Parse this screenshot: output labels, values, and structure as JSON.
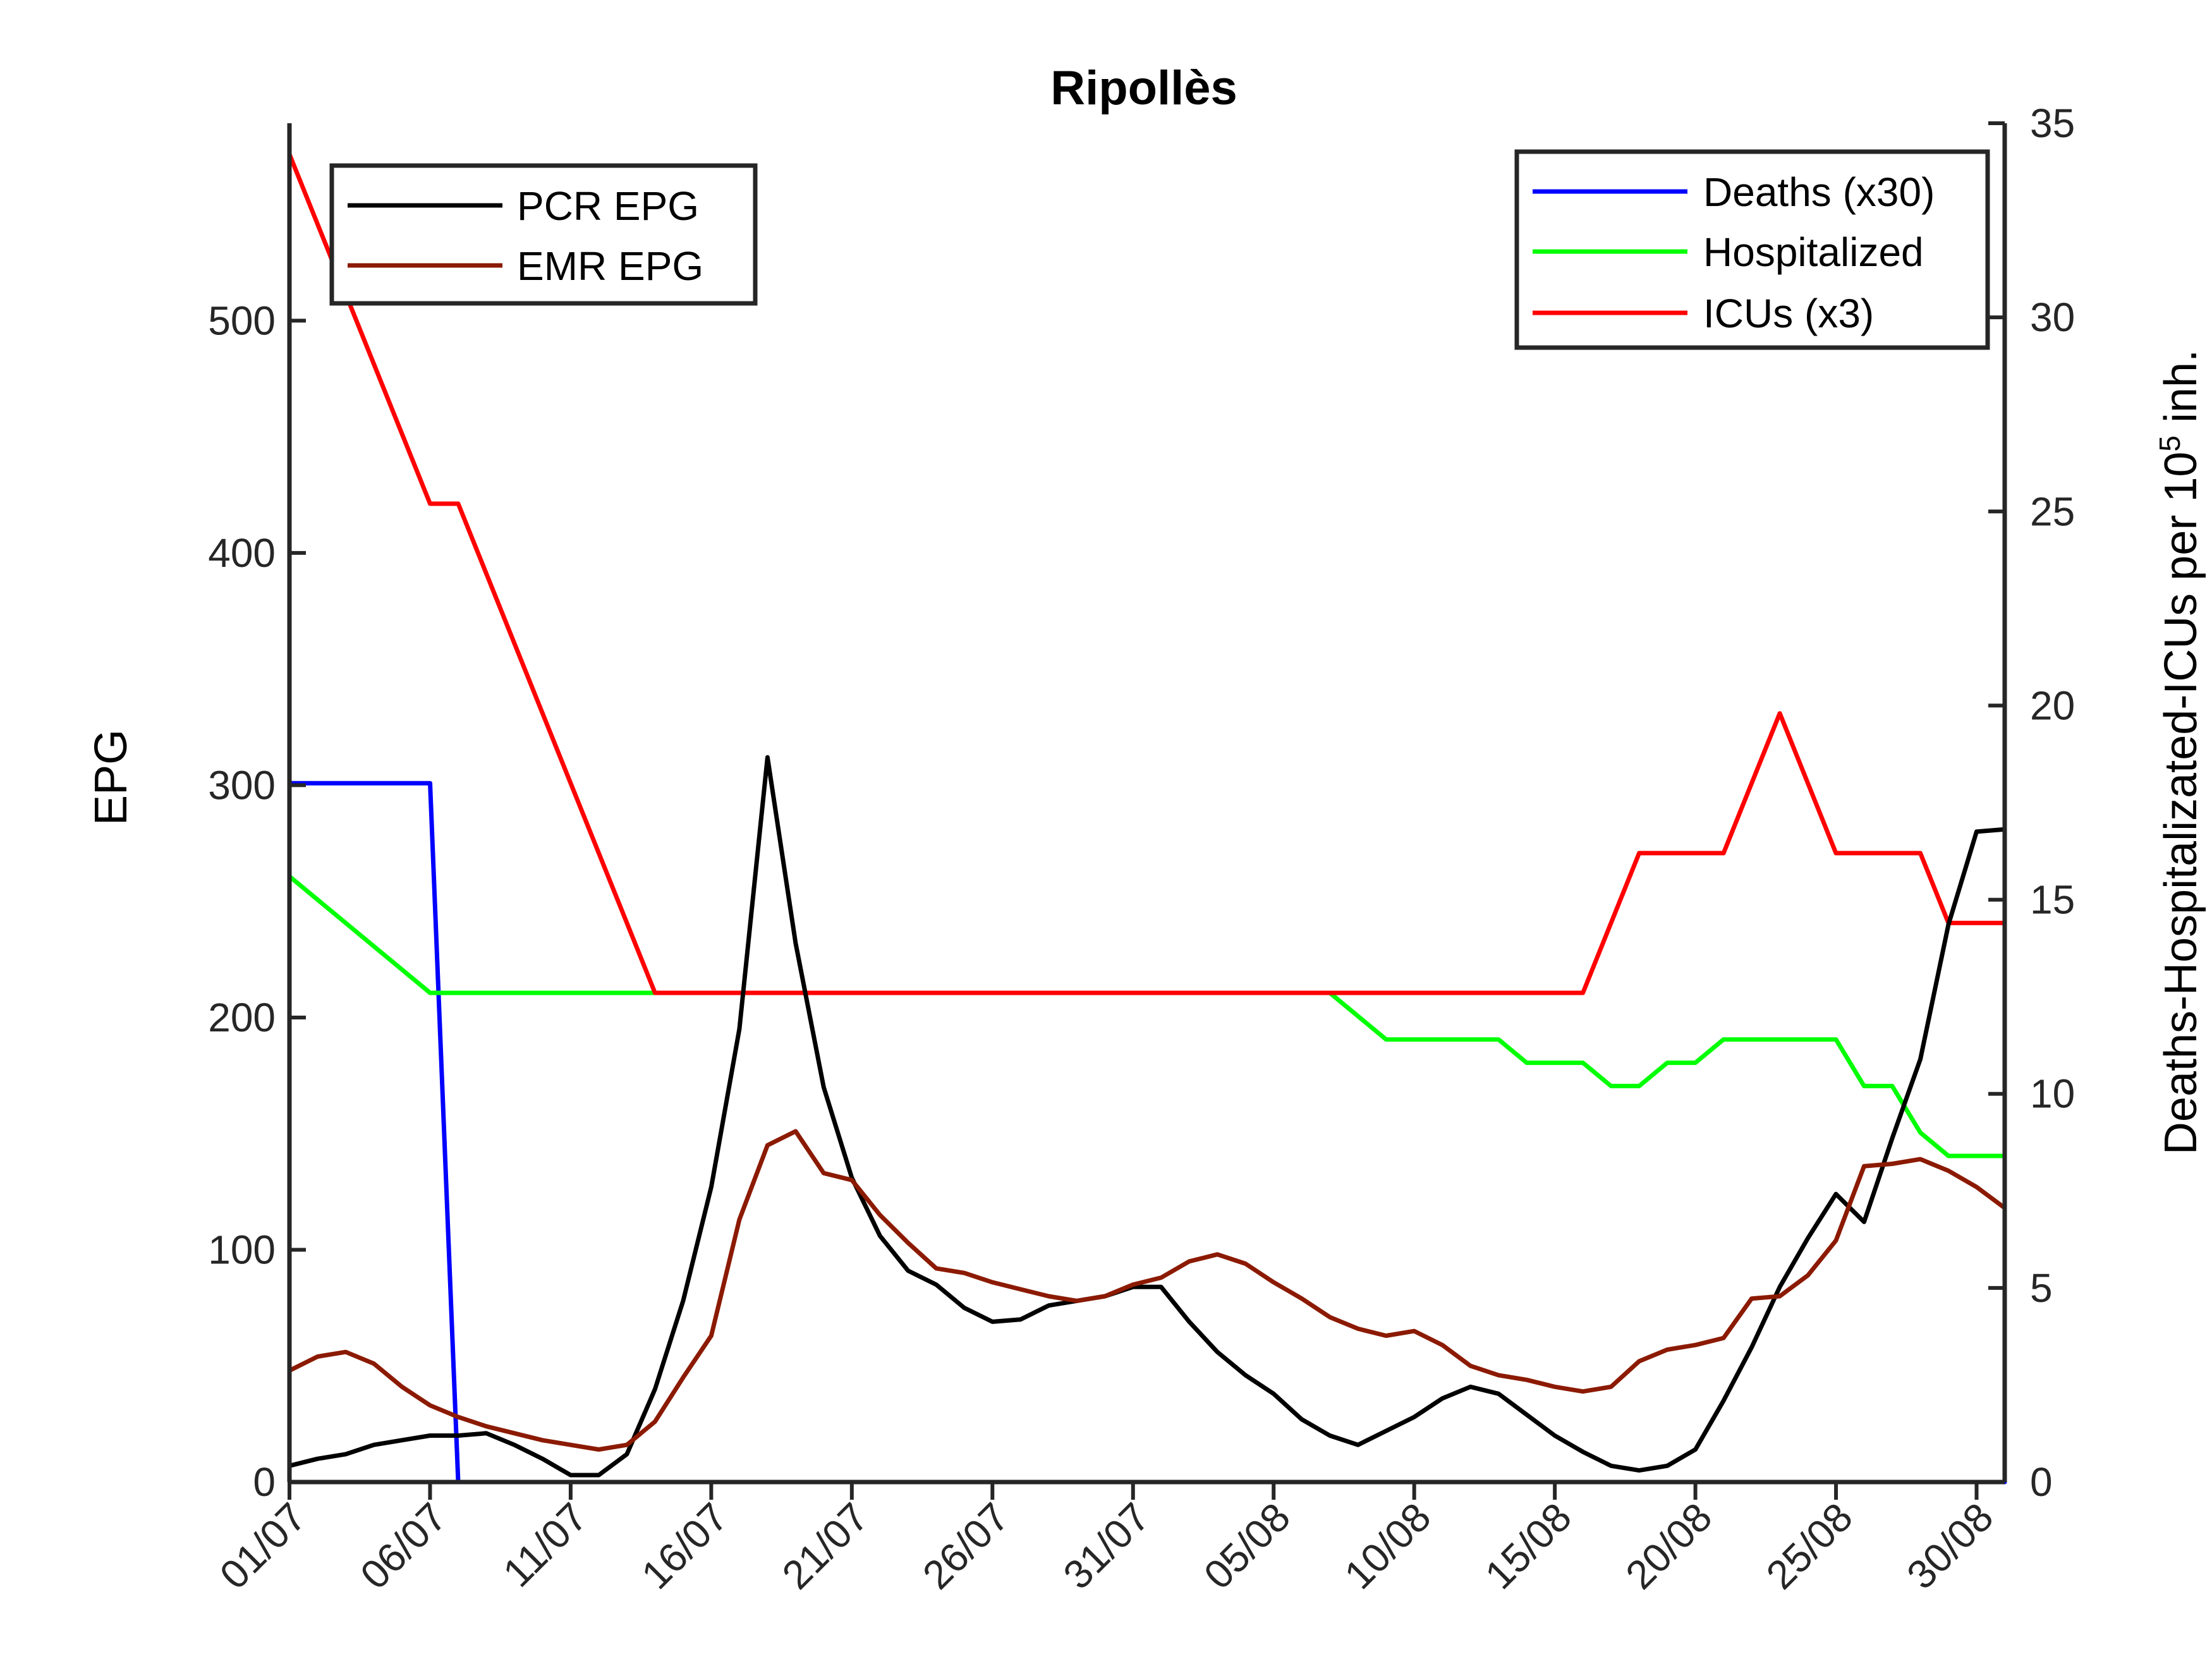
{
  "chart_data": {
    "type": "line",
    "title": "Ripollès",
    "ylabel_left": "EPG",
    "ylabel_right_pre": "Deaths-Hospitalizated-ICUs per 10",
    "ylabel_right_sup": "5",
    "ylabel_right_post": " inh.",
    "x_ticks": [
      "01/07",
      "06/07",
      "11/07",
      "16/07",
      "21/07",
      "26/07",
      "31/07",
      "05/08",
      "10/08",
      "15/08",
      "20/08",
      "25/08",
      "30/08"
    ],
    "x_tick_days": [
      0,
      5,
      10,
      15,
      20,
      25,
      30,
      35,
      40,
      45,
      50,
      55,
      60
    ],
    "xlim": [
      0,
      61
    ],
    "ylim_left": [
      0,
      585
    ],
    "yticks_left": [
      0,
      100,
      200,
      300,
      400,
      500
    ],
    "ylim_right": [
      0,
      35
    ],
    "yticks_right": [
      0,
      5,
      10,
      15,
      20,
      25,
      30,
      35
    ],
    "left_series": [
      {
        "name": "PCR EPG",
        "color": "#000000",
        "x": [
          0,
          1,
          2,
          3,
          4,
          5,
          6,
          7,
          8,
          9,
          10,
          11,
          12,
          13,
          14,
          15,
          16,
          17,
          18,
          19,
          20,
          21,
          22,
          23,
          24,
          25,
          26,
          27,
          28,
          29,
          30,
          31,
          32,
          33,
          34,
          35,
          36,
          37,
          38,
          39,
          40,
          41,
          42,
          43,
          44,
          45,
          46,
          47,
          48,
          49,
          50,
          51,
          52,
          53,
          54,
          55,
          56,
          57,
          58,
          59,
          60,
          61
        ],
        "values": [
          7,
          10,
          12,
          16,
          18,
          20,
          20,
          21,
          16,
          10,
          3,
          3,
          12,
          40,
          78,
          127,
          195,
          312,
          232,
          170,
          131,
          106,
          91,
          85,
          75,
          69,
          70,
          76,
          78,
          80,
          84,
          84,
          69,
          56,
          46,
          38,
          27,
          20,
          16,
          22,
          28,
          36,
          41,
          38,
          29,
          20,
          13,
          7,
          5,
          7,
          14,
          35,
          58,
          84,
          105,
          124,
          112,
          148,
          182,
          240,
          280,
          281
        ]
      },
      {
        "name": "EMR EPG",
        "color": "#8b1a00",
        "x": [
          0,
          1,
          2,
          3,
          4,
          5,
          6,
          7,
          8,
          9,
          10,
          11,
          12,
          13,
          14,
          15,
          16,
          17,
          18,
          19,
          20,
          21,
          22,
          23,
          24,
          25,
          26,
          27,
          28,
          29,
          30,
          31,
          32,
          33,
          34,
          35,
          36,
          37,
          38,
          39,
          40,
          41,
          42,
          43,
          44,
          45,
          46,
          47,
          48,
          49,
          50,
          51,
          52,
          53,
          54,
          55,
          56,
          57,
          58,
          59,
          60,
          61
        ],
        "values": [
          48,
          54,
          56,
          51,
          41,
          33,
          28,
          24,
          21,
          18,
          16,
          14,
          16,
          26,
          45,
          63,
          113,
          145,
          151,
          133,
          130,
          115,
          103,
          92,
          90,
          86,
          83,
          80,
          78,
          80,
          85,
          88,
          95,
          98,
          94,
          86,
          79,
          71,
          66,
          63,
          65,
          59,
          50,
          46,
          44,
          41,
          39,
          41,
          52,
          57,
          59,
          62,
          79,
          80,
          89,
          104,
          136,
          137,
          139,
          134,
          127,
          118
        ]
      }
    ],
    "right_series": [
      {
        "name": "Deaths (x30)",
        "color": "#0000ff",
        "x": [
          0,
          5,
          6,
          61
        ],
        "values": [
          18,
          18,
          0,
          0
        ]
      },
      {
        "name": "Hospitalized",
        "color": "#00ff00",
        "x": [
          0,
          5,
          13,
          37,
          39,
          43,
          44,
          46,
          47,
          48,
          49,
          50,
          51,
          55,
          56,
          57,
          58,
          59,
          60,
          61
        ],
        "values": [
          15.6,
          12.6,
          12.6,
          12.6,
          11.4,
          11.4,
          10.8,
          10.8,
          10.2,
          10.2,
          10.8,
          10.8,
          11.4,
          11.4,
          10.2,
          10.2,
          9.0,
          8.4,
          8.4,
          8.4
        ]
      },
      {
        "name": "ICUs (x3)",
        "color": "#ff0000",
        "x": [
          0,
          5,
          6,
          13,
          46,
          48,
          51,
          53,
          55,
          58,
          59,
          61
        ],
        "values": [
          34.2,
          25.2,
          25.2,
          12.6,
          12.6,
          16.2,
          16.2,
          19.8,
          16.2,
          16.2,
          14.4,
          14.4
        ]
      }
    ],
    "legend_left": {
      "placement": "top-left",
      "entries": [
        "PCR EPG",
        "EMR EPG"
      ]
    },
    "legend_right": {
      "placement": "top-right",
      "entries": [
        "Deaths (x30)",
        "Hospitalized",
        "ICUs (x3)"
      ]
    },
    "grid": false
  }
}
